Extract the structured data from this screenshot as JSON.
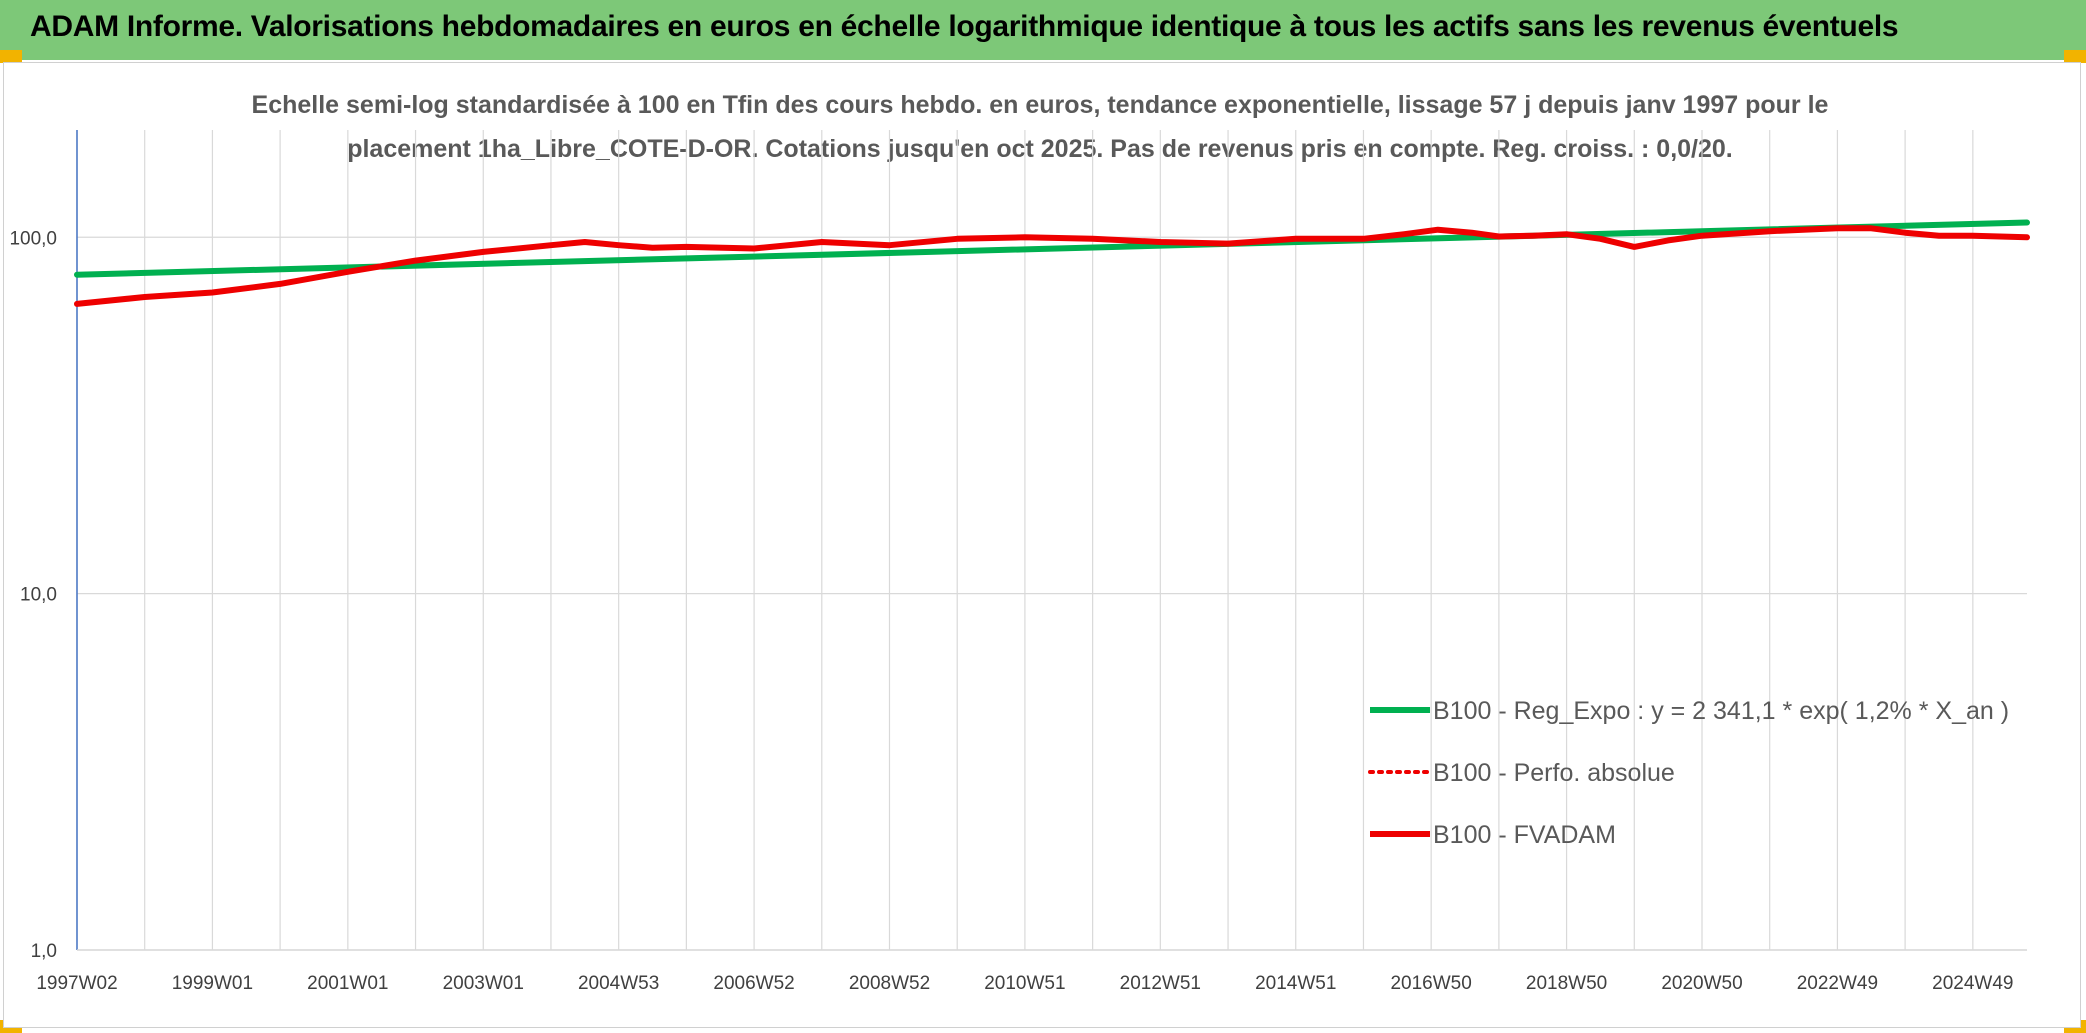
{
  "header": {
    "title": "ADAM Informe. Valorisations hebdomadaires en euros en échelle logarithmique identique à tous les actifs sans les revenus éventuels"
  },
  "colors": {
    "header_band": "#7dc878",
    "corner_accent": "#f2b300",
    "trend_series": "#00b050",
    "value_series": "#ee0000",
    "grid": "#d9d9d9",
    "axis": "#4472c4"
  },
  "chart_data": {
    "type": "line",
    "title": "",
    "subtitle_lines": [
      "Echelle semi-log standardisée à 100 en Tfin des cours hebdo. en euros, tendance exponentielle, lissage 57 j depuis janv 1997 pour le",
      "placement 1ha_Libre_COTE-D-OR. Cotations jusqu'en oct 2025. Pas de revenus pris en compte. Reg. croiss. : 0,0/20."
    ],
    "xlabel": "",
    "ylabel": "",
    "y_scale": "log",
    "ylim": [
      1,
      200
    ],
    "y_ticks": [
      {
        "value": 1,
        "label": "1,0"
      },
      {
        "value": 10,
        "label": "10,0"
      },
      {
        "value": 100,
        "label": "100,0"
      }
    ],
    "xlim": [
      1997.0,
      2025.8
    ],
    "x_ticks": [
      {
        "value": 1997.0,
        "label": "1997W02"
      },
      {
        "value": 1999.0,
        "label": "1999W01"
      },
      {
        "value": 2001.0,
        "label": "2001W01"
      },
      {
        "value": 2003.0,
        "label": "2003W01"
      },
      {
        "value": 2005.0,
        "label": "2004W53"
      },
      {
        "value": 2007.0,
        "label": "2006W52"
      },
      {
        "value": 2009.0,
        "label": "2008W52"
      },
      {
        "value": 2011.0,
        "label": "2010W51"
      },
      {
        "value": 2013.0,
        "label": "2012W51"
      },
      {
        "value": 2015.0,
        "label": "2014W51"
      },
      {
        "value": 2017.0,
        "label": "2016W50"
      },
      {
        "value": 2019.0,
        "label": "2018W50"
      },
      {
        "value": 2021.0,
        "label": "2020W50"
      },
      {
        "value": 2023.0,
        "label": "2022W49"
      },
      {
        "value": 2025.0,
        "label": "2024W49"
      }
    ],
    "grid": {
      "vertical": true,
      "horizontal": true
    },
    "legend_position": "right",
    "series": [
      {
        "name": "B100 - Reg_Expo : y = 2 341,1 * exp( 1,2% *  X_an )",
        "color": "#00b050",
        "style": "solid",
        "x": [
          1997.0,
          2025.8
        ],
        "y": [
          78.5,
          110.0
        ]
      },
      {
        "name": "B100 - Perfo. absolue",
        "color": "#ee0000",
        "style": "dotted",
        "x": [],
        "y": []
      },
      {
        "name": "B100 - FVADAM",
        "color": "#ee0000",
        "style": "solid",
        "x": [
          1997.0,
          1998.0,
          1999.0,
          2000.0,
          2001.0,
          2002.0,
          2003.0,
          2004.0,
          2004.5,
          2005.0,
          2005.5,
          2006.0,
          2007.0,
          2008.0,
          2009.0,
          2010.0,
          2011.0,
          2012.0,
          2013.0,
          2014.0,
          2015.0,
          2016.0,
          2016.6,
          2017.1,
          2017.6,
          2018.0,
          2018.5,
          2019.0,
          2019.5,
          2020.0,
          2020.5,
          2021.0,
          2022.0,
          2023.0,
          2023.5,
          2024.0,
          2024.5,
          2025.0,
          2025.8
        ],
        "y": [
          65.0,
          68.0,
          70.0,
          74.0,
          80.0,
          86.0,
          91.0,
          95.0,
          97.0,
          95.0,
          93.5,
          94.0,
          93.0,
          97.0,
          95.0,
          99.0,
          100.0,
          99.0,
          97.0,
          96.0,
          99.0,
          99.0,
          102.0,
          105.0,
          103.0,
          100.5,
          101.0,
          102.0,
          99.0,
          94.0,
          98.0,
          101.0,
          104.0,
          106.0,
          106.0,
          103.0,
          101.0,
          101.0,
          100.0
        ]
      }
    ]
  }
}
